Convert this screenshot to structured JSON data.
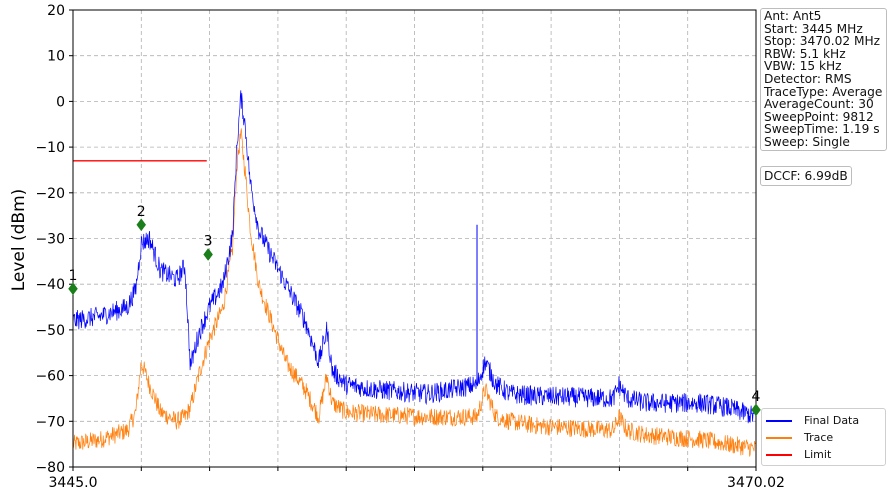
{
  "chart_data": {
    "type": "line",
    "title": "",
    "xlabel": "",
    "ylabel": "Level (dBm)",
    "xlim": [
      3445.0,
      3470.02
    ],
    "ylim": [
      -80,
      20
    ],
    "x_tick_labels": [
      "3445.0",
      "3470.02"
    ],
    "y_ticks": [
      20,
      10,
      0,
      -10,
      -20,
      -30,
      -40,
      -50,
      -60,
      -70,
      -80
    ],
    "grid": true,
    "legend_position": "lower-right",
    "series": [
      {
        "name": "Final Data",
        "color": "#0000ff",
        "x": [
          3445.0,
          3446.0,
          3447.0,
          3447.3,
          3447.5,
          3447.8,
          3448.2,
          3448.8,
          3449.1,
          3449.3,
          3449.6,
          3450.0,
          3450.5,
          3450.85,
          3451.0,
          3451.15,
          3451.3,
          3451.5,
          3451.8,
          3452.2,
          3452.8,
          3453.5,
          3454.0,
          3454.3,
          3454.5,
          3455.0,
          3456.0,
          3458.0,
          3459.8,
          3460.1,
          3460.5,
          3461.0,
          3462.0,
          3464.8,
          3465.0,
          3465.3,
          3466.0,
          3468.0,
          3469.0,
          3470.02
        ],
        "values": [
          -48,
          -47,
          -45,
          -41,
          -31,
          -30,
          -37,
          -39,
          -36,
          -58,
          -51,
          -45,
          -40,
          -29,
          -10,
          1,
          -5,
          -18,
          -28,
          -33,
          -40,
          -48,
          -57,
          -50,
          -59,
          -62,
          -63,
          -64,
          -62,
          -57,
          -62,
          -64,
          -64.5,
          -65,
          -62,
          -65,
          -66,
          -66,
          -67,
          -69
        ]
      },
      {
        "name": "Trace",
        "color": "#ff7f0e",
        "x": [
          3445.0,
          3446.0,
          3447.0,
          3447.3,
          3447.5,
          3447.8,
          3448.2,
          3448.8,
          3449.1,
          3449.3,
          3449.6,
          3450.0,
          3450.5,
          3450.85,
          3451.0,
          3451.15,
          3451.3,
          3451.5,
          3451.8,
          3452.2,
          3452.8,
          3453.5,
          3454.0,
          3454.3,
          3454.5,
          3455.0,
          3456.0,
          3458.0,
          3459.8,
          3460.1,
          3460.5,
          3461.0,
          3462.0,
          3464.8,
          3465.0,
          3465.3,
          3466.0,
          3468.0,
          3469.0,
          3470.02
        ],
        "values": [
          -75,
          -74,
          -72,
          -68,
          -57,
          -62,
          -68,
          -70,
          -69,
          -67,
          -60,
          -52,
          -45,
          -32,
          -14,
          -7,
          -15,
          -28,
          -40,
          -47,
          -57,
          -63,
          -69,
          -60,
          -66,
          -68,
          -68.5,
          -69,
          -69,
          -63,
          -69,
          -70,
          -71,
          -72,
          -69,
          -72,
          -73,
          -74,
          -75,
          -76
        ]
      },
      {
        "name": "Limit",
        "color": "#ff0000",
        "x": [
          3445.0,
          3449.9
        ],
        "values": [
          -13,
          -13
        ]
      }
    ],
    "spikes": [
      {
        "x": 3459.8,
        "value": -27,
        "series": "Final Data"
      }
    ],
    "markers": [
      {
        "label": "1",
        "x": 3445.0,
        "value": -41
      },
      {
        "label": "2",
        "x": 3447.5,
        "value": -27
      },
      {
        "label": "3",
        "x": 3449.95,
        "value": -33.5
      },
      {
        "label": "4",
        "x": 3470.02,
        "value": -67.5
      }
    ],
    "marker_color": "#1a7f1a"
  },
  "info": {
    "lines": [
      "Ant: Ant5",
      "Start: 3445 MHz",
      "Stop: 3470.02 MHz",
      "RBW: 5.1 kHz",
      "VBW: 15 kHz",
      "Detector: RMS",
      "TraceType: Average",
      "AverageCount: 30",
      "SweepPoint: 9812",
      "SweepTime: 1.19 s",
      "Sweep: Single"
    ],
    "dccf": "DCCF: 6.99dB"
  }
}
